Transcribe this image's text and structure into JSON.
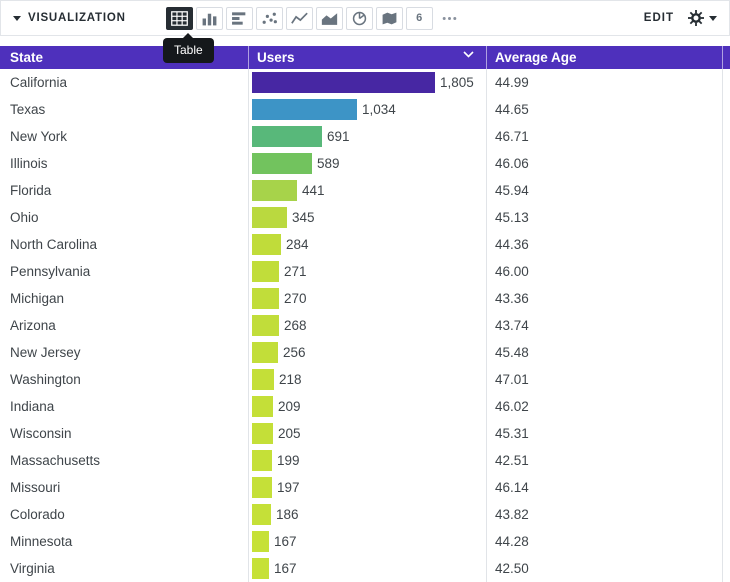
{
  "toolbar": {
    "title": "VISUALIZATION",
    "edit_label": "EDIT",
    "tooltip": "Table",
    "single_value_glyph": "6",
    "icons": [
      {
        "name": "table",
        "selected": true
      },
      {
        "name": "column-chart",
        "selected": false
      },
      {
        "name": "bar-chart",
        "selected": false
      },
      {
        "name": "scatter",
        "selected": false
      },
      {
        "name": "line-chart",
        "selected": false
      },
      {
        "name": "area-chart",
        "selected": false
      },
      {
        "name": "pie-chart",
        "selected": false
      },
      {
        "name": "map",
        "selected": false
      },
      {
        "name": "single-value",
        "selected": false
      },
      {
        "name": "more",
        "selected": false
      }
    ]
  },
  "colors": {
    "header_bg": "#4e30bc",
    "selected_icon_bg": "#262d33",
    "divider": "#e1e4e8"
  },
  "table": {
    "columns": [
      "State",
      "Users",
      "Average Age"
    ],
    "sorted_column": "Users",
    "sort_direction": "desc",
    "max_users": 1805,
    "rows": [
      {
        "state": "California",
        "users": "1,805",
        "users_value": 1805,
        "avg_age": "44.99",
        "bar_color": "#4727a3"
      },
      {
        "state": "Texas",
        "users": "1,034",
        "users_value": 1034,
        "avg_age": "44.65",
        "bar_color": "#3d94c6"
      },
      {
        "state": "New York",
        "users": "691",
        "users_value": 691,
        "avg_age": "46.71",
        "bar_color": "#58b87a"
      },
      {
        "state": "Illinois",
        "users": "589",
        "users_value": 589,
        "avg_age": "46.06",
        "bar_color": "#72c35e"
      },
      {
        "state": "Florida",
        "users": "441",
        "users_value": 441,
        "avg_age": "45.94",
        "bar_color": "#a7d34a"
      },
      {
        "state": "Ohio",
        "users": "345",
        "users_value": 345,
        "avg_age": "45.13",
        "bar_color": "#bad93f"
      },
      {
        "state": "North Carolina",
        "users": "284",
        "users_value": 284,
        "avg_age": "44.36",
        "bar_color": "#c0dc3a"
      },
      {
        "state": "Pennsylvania",
        "users": "271",
        "users_value": 271,
        "avg_age": "46.00",
        "bar_color": "#c1dd3a"
      },
      {
        "state": "Michigan",
        "users": "270",
        "users_value": 270,
        "avg_age": "43.36",
        "bar_color": "#c1dd3a"
      },
      {
        "state": "Arizona",
        "users": "268",
        "users_value": 268,
        "avg_age": "43.74",
        "bar_color": "#c1dd3a"
      },
      {
        "state": "New Jersey",
        "users": "256",
        "users_value": 256,
        "avg_age": "45.48",
        "bar_color": "#c2de39"
      },
      {
        "state": "Washington",
        "users": "218",
        "users_value": 218,
        "avg_age": "47.01",
        "bar_color": "#c4df38"
      },
      {
        "state": "Indiana",
        "users": "209",
        "users_value": 209,
        "avg_age": "46.02",
        "bar_color": "#c4df38"
      },
      {
        "state": "Wisconsin",
        "users": "205",
        "users_value": 205,
        "avg_age": "45.31",
        "bar_color": "#c4df38"
      },
      {
        "state": "Massachusetts",
        "users": "199",
        "users_value": 199,
        "avg_age": "42.51",
        "bar_color": "#c5e038"
      },
      {
        "state": "Missouri",
        "users": "197",
        "users_value": 197,
        "avg_age": "46.14",
        "bar_color": "#c5e038"
      },
      {
        "state": "Colorado",
        "users": "186",
        "users_value": 186,
        "avg_age": "43.82",
        "bar_color": "#c5e038"
      },
      {
        "state": "Minnesota",
        "users": "167",
        "users_value": 167,
        "avg_age": "44.28",
        "bar_color": "#c6e137"
      },
      {
        "state": "Virginia",
        "users": "167",
        "users_value": 167,
        "avg_age": "42.50",
        "bar_color": "#c6e137"
      }
    ]
  },
  "chart_data": {
    "type": "table",
    "categories": [
      "California",
      "Texas",
      "New York",
      "Illinois",
      "Florida",
      "Ohio",
      "North Carolina",
      "Pennsylvania",
      "Michigan",
      "Arizona",
      "New Jersey",
      "Washington",
      "Indiana",
      "Wisconsin",
      "Massachusetts",
      "Missouri",
      "Colorado",
      "Minnesota",
      "Virginia"
    ],
    "series": [
      {
        "name": "Users",
        "values": [
          1805,
          1034,
          691,
          589,
          441,
          345,
          284,
          271,
          270,
          268,
          256,
          218,
          209,
          205,
          199,
          197,
          186,
          167,
          167
        ]
      },
      {
        "name": "Average Age",
        "values": [
          44.99,
          44.65,
          46.71,
          46.06,
          45.94,
          45.13,
          44.36,
          46.0,
          43.36,
          43.74,
          45.48,
          47.01,
          46.02,
          45.31,
          42.51,
          46.14,
          43.82,
          44.28,
          42.5
        ]
      }
    ],
    "title": "",
    "xlabel": "State",
    "ylabel": "Users",
    "legend": "none"
  }
}
